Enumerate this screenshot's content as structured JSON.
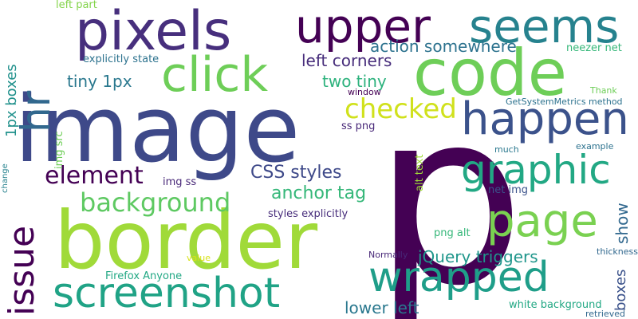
{
  "colors": {
    "background": "#ffffff",
    "palette": [
      "#440154",
      "#482878",
      "#3e4989",
      "#31688e",
      "#26828e",
      "#1f9e89",
      "#35b779",
      "#6ece58",
      "#b5de2b",
      "#fde725"
    ]
  },
  "words": [
    {
      "id": "p",
      "text": "p",
      "color": "#440154"
    },
    {
      "id": "image",
      "text": "image",
      "color": "#3e4989"
    },
    {
      "id": "border",
      "text": "border",
      "color": "#a0da39"
    },
    {
      "id": "code",
      "text": "code",
      "color": "#6ece58"
    },
    {
      "id": "pixels",
      "text": "pixels",
      "color": "#472f7d"
    },
    {
      "id": "upper",
      "text": "upper",
      "color": "#440154"
    },
    {
      "id": "seems",
      "text": "seems",
      "color": "#26828e"
    },
    {
      "id": "click",
      "text": "click",
      "color": "#6ece58"
    },
    {
      "id": "hr",
      "text": "hr",
      "color": "#31688e"
    },
    {
      "id": "happen",
      "text": "happen",
      "color": "#3b528b"
    },
    {
      "id": "graphic",
      "text": "graphic",
      "color": "#22a884"
    },
    {
      "id": "page",
      "text": "page",
      "color": "#7ad151"
    },
    {
      "id": "wrapped",
      "text": "wrapped",
      "color": "#1f9e89"
    },
    {
      "id": "screenshot",
      "text": "screenshot",
      "color": "#20a386"
    },
    {
      "id": "issue",
      "text": "issue",
      "color": "#440154"
    },
    {
      "id": "element",
      "text": "element",
      "color": "#440154"
    },
    {
      "id": "background",
      "text": "background",
      "color": "#5ec962"
    },
    {
      "id": "checked",
      "text": "checked",
      "color": "#d0e11c"
    },
    {
      "id": "anchor-tag",
      "text": "anchor tag",
      "color": "#35b779"
    },
    {
      "id": "css-styles",
      "text": "CSS styles",
      "color": "#3e4989"
    },
    {
      "id": "left-corners",
      "text": "left corners",
      "color": "#472d7b"
    },
    {
      "id": "action-somewhere",
      "text": "action somewhere",
      "color": "#2c728e"
    },
    {
      "id": "tiny-1px",
      "text": "tiny 1px",
      "color": "#2a788e"
    },
    {
      "id": "two-tiny",
      "text": "two tiny",
      "color": "#2db27d"
    },
    {
      "id": "jquery-triggers",
      "text": "jQuery triggers",
      "color": "#1f968b"
    },
    {
      "id": "lower-left",
      "text": "lower left",
      "color": "#2a788e"
    },
    {
      "id": "show",
      "text": "show",
      "color": "#31688e"
    },
    {
      "id": "boxes",
      "text": "boxes",
      "color": "#3b528b"
    },
    {
      "id": "1px-boxes",
      "text": "1px boxes",
      "color": "#21918c"
    },
    {
      "id": "explicitly-state",
      "text": "explicitly state",
      "color": "#2c728e"
    },
    {
      "id": "left-part",
      "text": "left part",
      "color": "#84d44b"
    },
    {
      "id": "neezer-net",
      "text": "neezer net",
      "color": "#35b779"
    },
    {
      "id": "getsystemmetrics",
      "text": "GetSystemMetrics method",
      "color": "#2c728e"
    },
    {
      "id": "thank",
      "text": "Thank",
      "color": "#6ece58"
    },
    {
      "id": "window",
      "text": "window",
      "color": "#440154"
    },
    {
      "id": "img-src",
      "text": "img src",
      "color": "#6ece58"
    },
    {
      "id": "ss-png",
      "text": "ss png",
      "color": "#482878"
    },
    {
      "id": "img-ss",
      "text": "img ss",
      "color": "#482878"
    },
    {
      "id": "alt-text",
      "text": "alt text",
      "color": "#a0da39"
    },
    {
      "id": "net-img",
      "text": "net img",
      "color": "#3b528b"
    },
    {
      "id": "styles-explicitly",
      "text": "styles explicitly",
      "color": "#472d7b"
    },
    {
      "id": "png-alt",
      "text": "png alt",
      "color": "#35b779"
    },
    {
      "id": "much",
      "text": "much",
      "color": "#2a788e"
    },
    {
      "id": "example",
      "text": "example",
      "color": "#2c728e"
    },
    {
      "id": "change",
      "text": "change",
      "color": "#26828e"
    },
    {
      "id": "normally",
      "text": "Normally",
      "color": "#482878"
    },
    {
      "id": "thickness",
      "text": "thickness",
      "color": "#31688e"
    },
    {
      "id": "value",
      "text": "value",
      "color": "#d8e219"
    },
    {
      "id": "firefox-anyone",
      "text": "Firefox Anyone",
      "color": "#22a884"
    },
    {
      "id": "white-background",
      "text": "white background",
      "color": "#22a884"
    },
    {
      "id": "retrieved",
      "text": "retrieved",
      "color": "#31688e"
    }
  ]
}
